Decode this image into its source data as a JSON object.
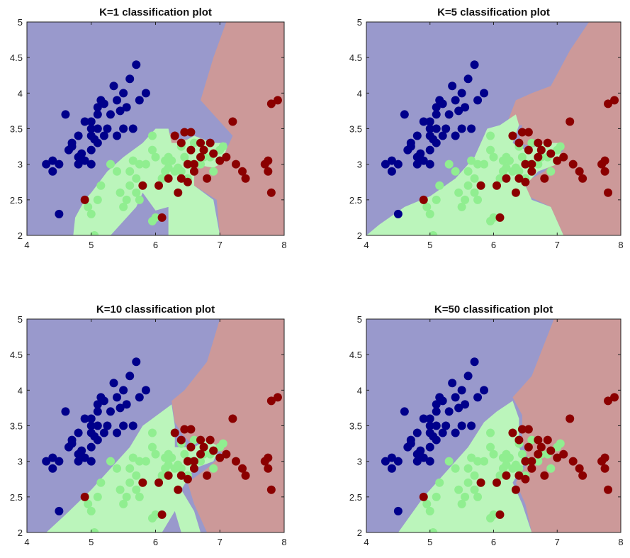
{
  "colors": {
    "region_class1": "#9999cc",
    "region_class2": "#bbf5bb",
    "region_class3": "#cc9999",
    "point_class1": "#00008b",
    "point_class2": "#90ee90",
    "point_class3": "#8b0000",
    "axis": "#222222"
  },
  "chart_data": [
    {
      "type": "scatter",
      "title": "K=1 classification plot",
      "k": 1,
      "xlim": [
        4,
        8
      ],
      "ylim": [
        2,
        5
      ],
      "xticks": [
        "4",
        "5",
        "6",
        "7",
        "8"
      ],
      "yticks": [
        "2",
        "2.5",
        "3",
        "3.5",
        "4",
        "4.5",
        "5"
      ],
      "background": "decision-region map (blue / green / red)",
      "grid": false
    },
    {
      "type": "scatter",
      "title": "K=5 classification plot",
      "k": 5,
      "xlim": [
        4,
        8
      ],
      "ylim": [
        2,
        5
      ],
      "xticks": [
        "4",
        "5",
        "6",
        "7",
        "8"
      ],
      "yticks": [
        "2",
        "2.5",
        "3",
        "3.5",
        "4",
        "4.5",
        "5"
      ],
      "background": "decision-region map (blue / green / red)",
      "grid": false
    },
    {
      "type": "scatter",
      "title": "K=10 classification plot",
      "k": 10,
      "xlim": [
        4,
        8
      ],
      "ylim": [
        2,
        5
      ],
      "xticks": [
        "4",
        "5",
        "6",
        "7",
        "8"
      ],
      "yticks": [
        "2",
        "2.5",
        "3",
        "3.5",
        "4",
        "4.5",
        "5"
      ],
      "background": "decision-region map (blue / green / red)",
      "grid": false
    },
    {
      "type": "scatter",
      "title": "K=50 classification plot",
      "k": 50,
      "xlim": [
        4,
        8
      ],
      "ylim": [
        2,
        5
      ],
      "xticks": [
        "4",
        "5",
        "6",
        "7",
        "8"
      ],
      "yticks": [
        "2",
        "2.5",
        "3",
        "3.5",
        "4",
        "4.5",
        "5"
      ],
      "background": "decision-region map (blue / green / red)",
      "grid": false
    }
  ],
  "points": {
    "class1": [
      [
        4.3,
        3.0
      ],
      [
        4.4,
        3.05
      ],
      [
        4.5,
        3.0
      ],
      [
        4.4,
        2.9
      ],
      [
        4.5,
        2.3
      ],
      [
        4.6,
        3.7
      ],
      [
        4.65,
        3.2
      ],
      [
        4.7,
        3.25
      ],
      [
        4.7,
        3.3
      ],
      [
        4.8,
        3.1
      ],
      [
        4.8,
        3.0
      ],
      [
        4.8,
        3.4
      ],
      [
        4.85,
        3.15
      ],
      [
        4.9,
        3.05
      ],
      [
        4.9,
        3.6
      ],
      [
        5.0,
        3.0
      ],
      [
        5.0,
        3.2
      ],
      [
        5.0,
        3.4
      ],
      [
        5.0,
        3.5
      ],
      [
        5.0,
        3.6
      ],
      [
        5.05,
        3.35
      ],
      [
        5.1,
        3.5
      ],
      [
        5.1,
        3.8
      ],
      [
        5.1,
        3.7
      ],
      [
        5.1,
        3.3
      ],
      [
        5.15,
        3.9
      ],
      [
        5.2,
        3.4
      ],
      [
        5.2,
        3.85
      ],
      [
        5.25,
        3.5
      ],
      [
        5.3,
        3.7
      ],
      [
        5.35,
        4.1
      ],
      [
        5.4,
        3.9
      ],
      [
        5.4,
        3.4
      ],
      [
        5.45,
        3.75
      ],
      [
        5.5,
        3.5
      ],
      [
        5.5,
        4.0
      ],
      [
        5.55,
        3.8
      ],
      [
        5.6,
        4.2
      ],
      [
        5.65,
        3.5
      ],
      [
        5.7,
        4.4
      ],
      [
        5.75,
        3.9
      ],
      [
        5.85,
        4.0
      ]
    ],
    "class2": [
      [
        4.95,
        2.4
      ],
      [
        5.0,
        2.3
      ],
      [
        5.05,
        2.0
      ],
      [
        5.1,
        2.5
      ],
      [
        5.15,
        2.7
      ],
      [
        5.3,
        3.0
      ],
      [
        5.4,
        2.9
      ],
      [
        5.45,
        2.6
      ],
      [
        5.5,
        2.4
      ],
      [
        5.55,
        2.5
      ],
      [
        5.6,
        2.7
      ],
      [
        5.6,
        2.9
      ],
      [
        5.65,
        3.05
      ],
      [
        5.7,
        2.8
      ],
      [
        5.7,
        2.6
      ],
      [
        5.75,
        3.0
      ],
      [
        5.75,
        2.5
      ],
      [
        5.8,
        2.7
      ],
      [
        5.85,
        3.0
      ],
      [
        5.95,
        2.2
      ],
      [
        5.95,
        3.2
      ],
      [
        5.95,
        3.4
      ],
      [
        6.0,
        3.1
      ],
      [
        6.0,
        2.25
      ],
      [
        6.1,
        2.8
      ],
      [
        6.15,
        2.9
      ],
      [
        6.2,
        2.95
      ],
      [
        6.2,
        3.1
      ],
      [
        6.25,
        3.05
      ],
      [
        6.3,
        2.9
      ],
      [
        6.35,
        2.95
      ],
      [
        6.4,
        2.9
      ],
      [
        6.4,
        3.25
      ],
      [
        6.45,
        3.1
      ],
      [
        6.5,
        2.8
      ],
      [
        6.55,
        3.0
      ],
      [
        6.6,
        3.3
      ],
      [
        6.7,
        3.0
      ],
      [
        6.75,
        3.1
      ],
      [
        6.85,
        3.1
      ],
      [
        6.9,
        2.9
      ],
      [
        7.0,
        3.2
      ],
      [
        7.05,
        3.25
      ],
      [
        6.15,
        3.05
      ]
    ],
    "class3": [
      [
        4.9,
        2.5
      ],
      [
        5.8,
        2.7
      ],
      [
        6.05,
        2.7
      ],
      [
        6.1,
        2.25
      ],
      [
        6.2,
        2.8
      ],
      [
        6.3,
        3.4
      ],
      [
        6.35,
        2.6
      ],
      [
        6.4,
        2.8
      ],
      [
        6.4,
        3.3
      ],
      [
        6.45,
        3.45
      ],
      [
        6.5,
        3.0
      ],
      [
        6.5,
        2.75
      ],
      [
        6.55,
        3.2
      ],
      [
        6.6,
        3.0
      ],
      [
        6.6,
        2.9
      ],
      [
        6.7,
        3.3
      ],
      [
        6.7,
        3.1
      ],
      [
        6.75,
        3.2
      ],
      [
        6.8,
        2.8
      ],
      [
        6.85,
        3.3
      ],
      [
        6.9,
        3.15
      ],
      [
        7.0,
        3.05
      ],
      [
        7.1,
        3.1
      ],
      [
        7.2,
        3.6
      ],
      [
        7.25,
        3.0
      ],
      [
        7.35,
        2.9
      ],
      [
        7.4,
        2.8
      ],
      [
        7.7,
        3.0
      ],
      [
        7.75,
        2.9
      ],
      [
        7.8,
        2.6
      ],
      [
        7.8,
        3.85
      ],
      [
        7.9,
        3.9
      ],
      [
        7.75,
        3.05
      ],
      [
        6.55,
        3.45
      ]
    ]
  }
}
